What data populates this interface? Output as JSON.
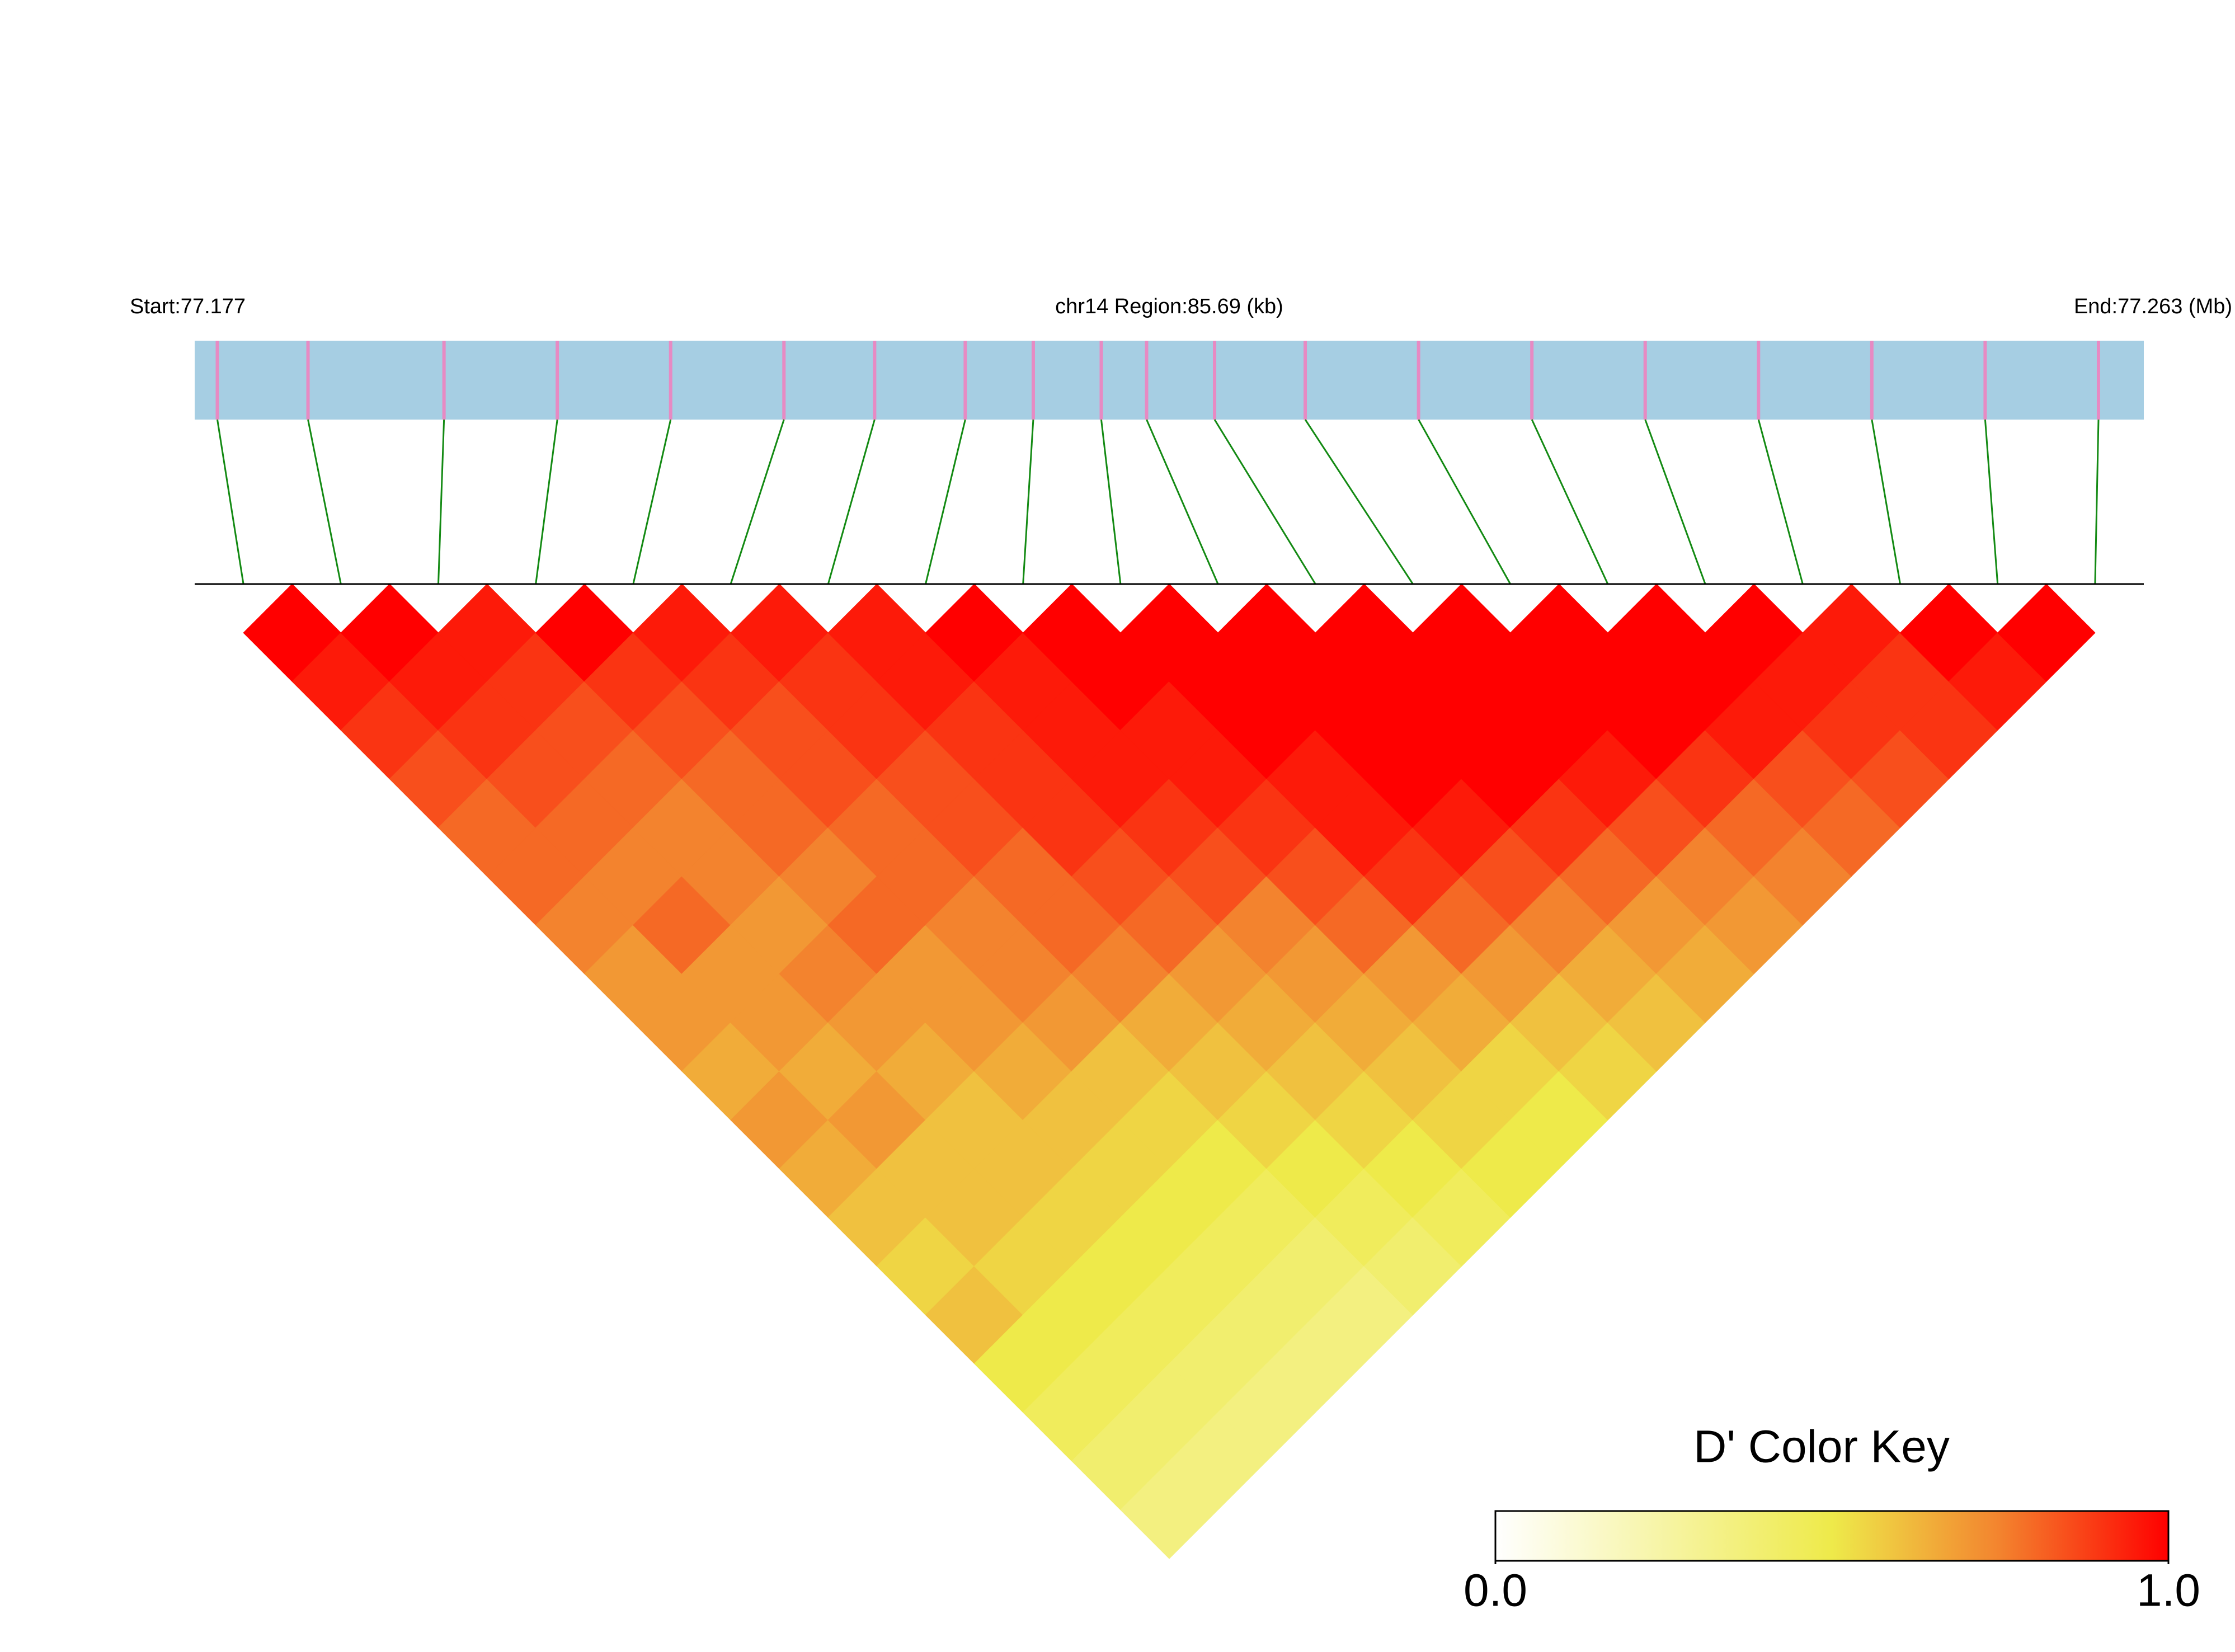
{
  "chart_data": {
    "type": "ld_heatmap",
    "start_label": "Start:77.177",
    "region_label": "chr14 Region:85.69 (kb)",
    "end_label": "End:77.263 (Mb)",
    "xlim": [
      77.177,
      77.263
    ],
    "positions": [
      77.178,
      77.182,
      77.188,
      77.193,
      77.198,
      77.203,
      77.207,
      77.211,
      77.214,
      77.217,
      77.219,
      77.222,
      77.226,
      77.231,
      77.236,
      77.241,
      77.246,
      77.251,
      77.256,
      77.261
    ],
    "track_color": "#a6cee3",
    "snp_color": "#e78ac3",
    "connector_color": "#138a13",
    "values": [
      [
        1,
        0.95,
        0.9,
        0.85,
        0.8,
        0.8,
        0.75,
        0.7,
        0.7,
        0.65,
        0.7,
        0.65,
        0.6,
        0.55,
        0.6,
        0.5,
        0.45,
        0.4,
        0.35
      ],
      [
        1,
        0.95,
        0.9,
        0.85,
        0.8,
        0.75,
        0.8,
        0.7,
        0.7,
        0.65,
        0.7,
        0.6,
        0.6,
        0.55,
        0.5,
        0.45,
        0.4,
        0.35
      ],
      [
        0.95,
        0.9,
        0.85,
        0.8,
        0.75,
        0.75,
        0.7,
        0.75,
        0.7,
        0.65,
        0.6,
        0.6,
        0.55,
        0.5,
        0.45,
        0.4,
        0.35
      ],
      [
        1,
        0.9,
        0.85,
        0.8,
        0.8,
        0.75,
        0.8,
        0.7,
        0.7,
        0.65,
        0.6,
        0.55,
        0.5,
        0.45,
        0.4,
        0.35
      ],
      [
        0.95,
        0.9,
        0.85,
        0.85,
        0.8,
        0.8,
        0.75,
        0.75,
        0.7,
        0.6,
        0.55,
        0.5,
        0.45,
        0.4,
        0.35
      ],
      [
        0.95,
        0.9,
        0.9,
        0.85,
        0.85,
        0.8,
        0.8,
        0.75,
        0.65,
        0.6,
        0.55,
        0.5,
        0.45,
        0.4
      ],
      [
        0.95,
        0.95,
        0.9,
        0.9,
        0.9,
        0.85,
        0.8,
        0.7,
        0.65,
        0.6,
        0.55,
        0.5,
        0.45
      ],
      [
        1,
        0.95,
        0.95,
        0.95,
        0.9,
        0.85,
        0.75,
        0.7,
        0.65,
        0.6,
        0.55,
        0.5
      ],
      [
        1,
        1,
        0.95,
        0.95,
        0.9,
        0.85,
        0.8,
        0.7,
        0.65,
        0.55,
        0.5
      ],
      [
        1,
        1,
        1,
        0.95,
        0.95,
        0.9,
        0.8,
        0.7,
        0.6,
        0.55
      ],
      [
        1,
        1,
        1,
        1,
        0.95,
        0.85,
        0.75,
        0.65,
        0.6
      ],
      [
        1,
        1,
        1,
        1,
        0.9,
        0.8,
        0.7,
        0.65
      ],
      [
        1,
        1,
        1,
        0.95,
        0.85,
        0.75,
        0.7
      ],
      [
        1,
        1,
        1,
        0.9,
        0.8,
        0.75
      ],
      [
        1,
        1,
        0.95,
        0.85,
        0.8
      ],
      [
        1,
        0.95,
        0.9,
        0.85
      ],
      [
        0.95,
        0.9,
        0.9
      ],
      [
        1,
        0.95
      ],
      [
        1
      ]
    ],
    "color_key": {
      "title": "D' Color Key",
      "clim": [
        0,
        1
      ],
      "ticks": [
        {
          "value": 0,
          "label": "0.0"
        },
        {
          "value": 1,
          "label": "1.0"
        }
      ],
      "stops": [
        {
          "value": 0,
          "color": "#ffffff"
        },
        {
          "value": 0.5,
          "color": "#eeea4a"
        },
        {
          "value": 0.75,
          "color": "#f3832e"
        },
        {
          "value": 1,
          "color": "#ff0000"
        }
      ]
    }
  }
}
